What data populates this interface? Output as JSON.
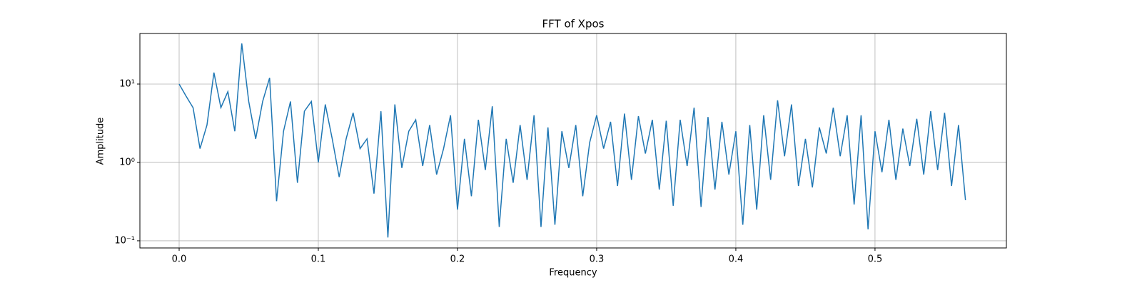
{
  "chart_data": {
    "type": "line",
    "title": "FFT of Xpos",
    "x_label": "Frequency",
    "y_label": "Amplitude",
    "log_y": true,
    "grid": true,
    "xlim": [
      -0.0282,
      0.5944
    ],
    "xticks": [
      {
        "value": 0,
        "label": "0.0"
      },
      0.1,
      0.2,
      0.3,
      0.4,
      0.5
    ],
    "ylim": [
      0.081,
      44.2
    ],
    "yticks": [
      {
        "value": 0.1,
        "label": "10⁻¹"
      },
      {
        "value": 1,
        "label": "10⁰"
      },
      {
        "value": 10,
        "label": "10¹"
      }
    ],
    "x": [
      0,
      0.005,
      0.01,
      0.015,
      0.02,
      0.025,
      0.03,
      0.035,
      0.04,
      0.045,
      0.05,
      0.055,
      0.06,
      0.065,
      0.07,
      0.075,
      0.08,
      0.085,
      0.09,
      0.095,
      0.1,
      0.105,
      0.11,
      0.115,
      0.12,
      0.125,
      0.13,
      0.135,
      0.14,
      0.145,
      0.15,
      0.155,
      0.16,
      0.165,
      0.17,
      0.175,
      0.18,
      0.185,
      0.19,
      0.195,
      0.2,
      0.205,
      0.21,
      0.215,
      0.22,
      0.225,
      0.23,
      0.235,
      0.24,
      0.245,
      0.25,
      0.255,
      0.26,
      0.265,
      0.27,
      0.275,
      0.28,
      0.285,
      0.29,
      0.295,
      0.3,
      0.305,
      0.31,
      0.315,
      0.32,
      0.325,
      0.33,
      0.335,
      0.34,
      0.345,
      0.35,
      0.355,
      0.36,
      0.365,
      0.37,
      0.375,
      0.38,
      0.385,
      0.39,
      0.395,
      0.4,
      0.405,
      0.41,
      0.415,
      0.42,
      0.425,
      0.43,
      0.435,
      0.44,
      0.445,
      0.45,
      0.455,
      0.46,
      0.465,
      0.47,
      0.475,
      0.48,
      0.485,
      0.49,
      0.495,
      0.5,
      0.505,
      0.51,
      0.515,
      0.52,
      0.525,
      0.53,
      0.535,
      0.54,
      0.545,
      0.55,
      0.555,
      0.56,
      0.565
    ],
    "series": [
      {
        "name": "FFT",
        "color": "#1f77b4",
        "values": [
          10,
          7,
          5,
          1.5,
          3,
          14,
          5,
          8,
          2.5,
          33,
          6,
          2,
          6,
          12,
          0.32,
          2.5,
          6,
          0.55,
          4.5,
          6,
          1,
          5.5,
          2,
          0.65,
          2,
          4.3,
          1.5,
          2,
          0.4,
          4.5,
          0.11,
          5.5,
          0.85,
          2.5,
          3.5,
          0.9,
          3,
          0.7,
          1.5,
          4,
          0.25,
          2,
          0.37,
          3.5,
          0.8,
          5.2,
          0.15,
          2,
          0.55,
          3,
          0.6,
          4,
          0.15,
          2.8,
          0.16,
          2.5,
          0.85,
          3,
          0.37,
          1.8,
          4,
          1.5,
          3.3,
          0.5,
          4.2,
          0.6,
          3.9,
          1.3,
          3.5,
          0.45,
          3.4,
          0.28,
          3.5,
          0.9,
          5,
          0.27,
          3.8,
          0.45,
          3.3,
          0.7,
          2.5,
          0.16,
          3,
          0.25,
          4,
          0.6,
          6.2,
          1.2,
          5.5,
          0.5,
          2,
          0.48,
          2.8,
          1.3,
          5,
          1.2,
          4,
          0.29,
          4,
          0.14,
          2.5,
          0.75,
          3.5,
          0.6,
          2.7,
          0.9,
          3.6,
          0.7,
          4.5,
          0.8,
          4.3,
          0.5,
          3,
          0.33
        ]
      }
    ]
  }
}
